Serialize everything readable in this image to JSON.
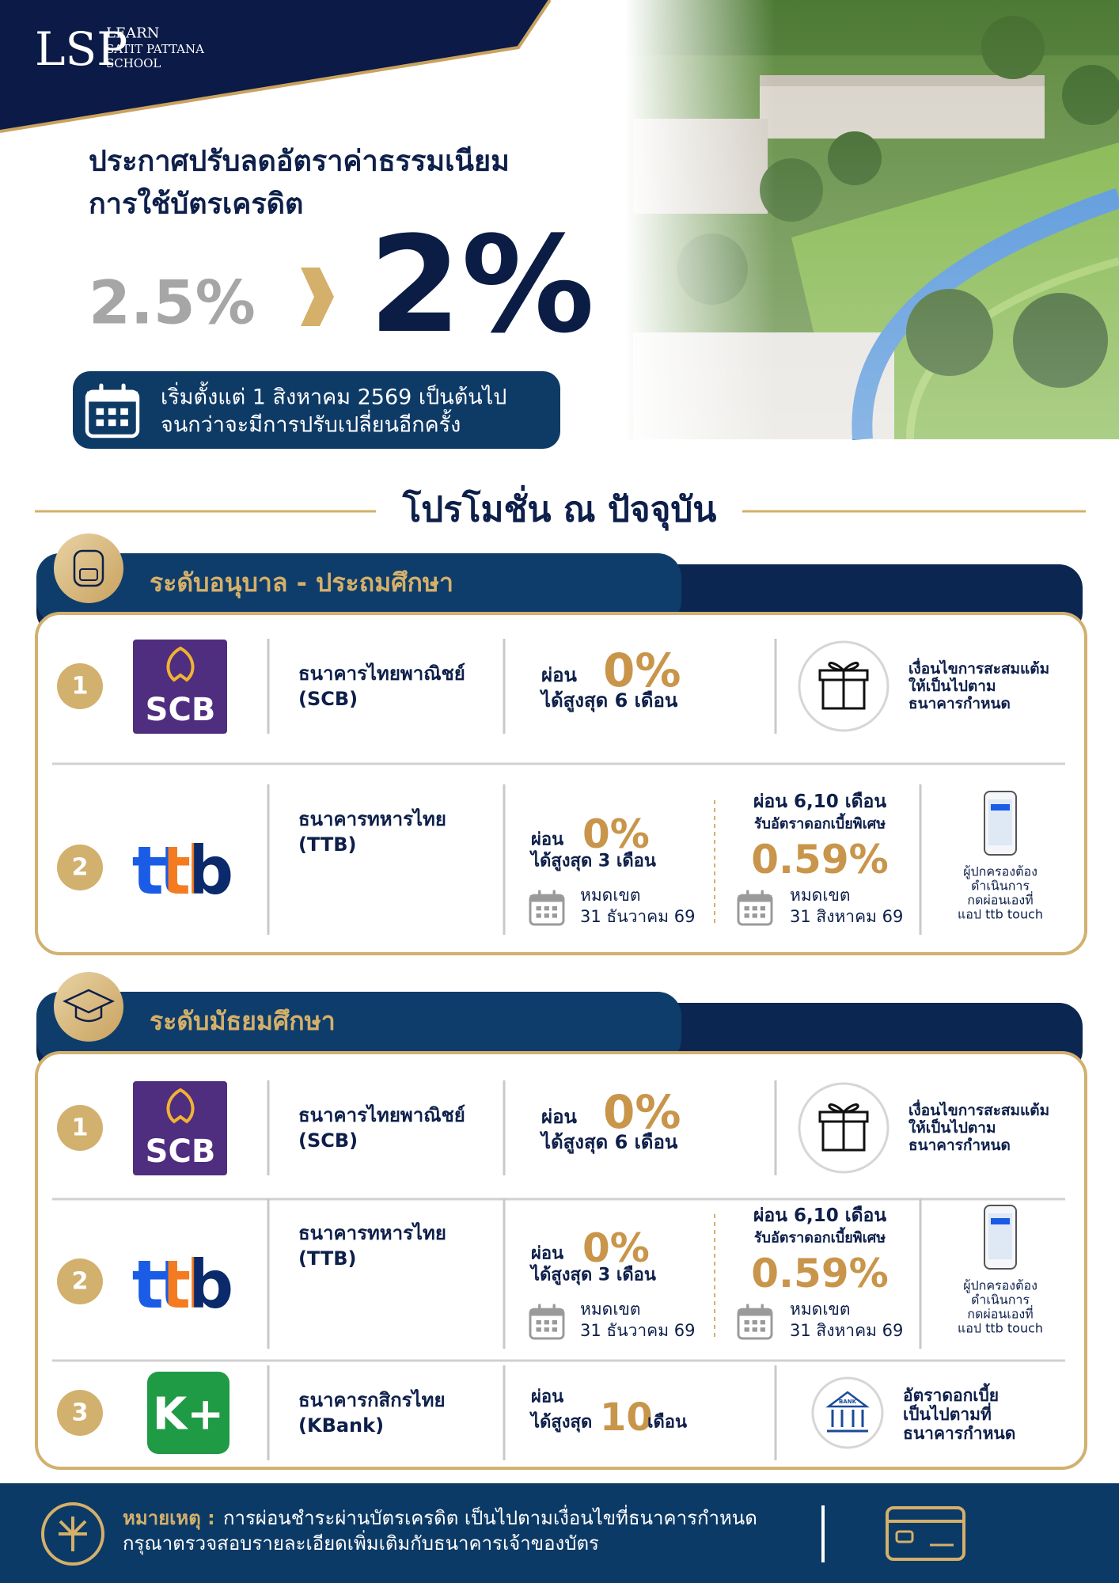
{
  "logo": {
    "mark": "LSP",
    "line1": "LEARN",
    "line2": "SATIT PATTANA",
    "line3": "SCHOOL"
  },
  "headline": {
    "line1": "ประกาศปรับลดอัตราค่าธรรมเนียม",
    "line2": "การใช้บัตรเครดิต",
    "old_rate": "2.5%",
    "new_rate": "2%"
  },
  "effective": {
    "line1": "เริ่มตั้งแต่ 1 สิงหาคม 2569 เป็นต้นไป",
    "line2": "จนกว่าจะมีการปรับเปลี่ยนอีกครั้ง"
  },
  "section_title": "โปรโมชั่น ณ ปัจจุบัน",
  "levels": [
    {
      "title": "ระดับอนุบาล - ประถมศึกษา",
      "banks": [
        {
          "number": "1",
          "logo": "SCB",
          "color": "#4f2d7f",
          "name": "ธนาคารไทยพาณิชย์",
          "code": "(SCB)",
          "installment": {
            "label": "ผ่อน",
            "rate": "0%",
            "term": "ได้สูงสุด 6 เดือน"
          },
          "condition": [
            "เงื่อนไขการสะสมแต้ม",
            "ให้เป็นไปตาม",
            "ธนาคารกำหนด"
          ]
        },
        {
          "number": "2",
          "logo": "ttb",
          "color": "#1a5ce6",
          "name": "ธนาคารทหารไทย",
          "code": "(TTB)",
          "installment": {
            "label": "ผ่อน",
            "rate": "0%",
            "term": "ได้สูงสุด 3 เดือน",
            "expiry_label": "หมดเขต",
            "expiry": "31 ธันวาคม 69"
          },
          "special": {
            "title": "ผ่อน 6,10 เดือน",
            "label": "รับอัตราดอกเบี้ยพิเศษ",
            "rate": "0.59%",
            "expiry_label": "หมดเขต",
            "expiry": "31 สิงหาคม 69"
          },
          "condition": [
            "ผู้ปกครองต้อง",
            "ดำเนินการ",
            "กดผ่อนเองที่",
            "แอป ttb touch"
          ]
        }
      ]
    },
    {
      "title": "ระดับมัธยมศึกษา",
      "banks": [
        {
          "number": "1",
          "logo": "SCB",
          "color": "#4f2d7f",
          "name": "ธนาคารไทยพาณิชย์",
          "code": "(SCB)",
          "installment": {
            "label": "ผ่อน",
            "rate": "0%",
            "term": "ได้สูงสุด 6 เดือน"
          },
          "condition": [
            "เงื่อนไขการสะสมแต้ม",
            "ให้เป็นไปตาม",
            "ธนาคารกำหนด"
          ]
        },
        {
          "number": "2",
          "logo": "ttb",
          "color": "#1a5ce6",
          "name": "ธนาคารทหารไทย",
          "code": "(TTB)",
          "installment": {
            "label": "ผ่อน",
            "rate": "0%",
            "term": "ได้สูงสุด 3 เดือน",
            "expiry_label": "หมดเขต",
            "expiry": "31 ธันวาคม 69"
          },
          "special": {
            "title": "ผ่อน 6,10 เดือน",
            "label": "รับอัตราดอกเบี้ยพิเศษ",
            "rate": "0.59%",
            "expiry_label": "หมดเขต",
            "expiry": "31 สิงหาคม 69"
          },
          "condition": [
            "ผู้ปกครองต้อง",
            "ดำเนินการ",
            "กดผ่อนเองที่",
            "แอป ttb touch"
          ]
        },
        {
          "number": "3",
          "logo": "K+",
          "color": "#1f9a45",
          "name": "ธนาคารกสิกรไทย",
          "code": "(KBank)",
          "installment": {
            "label": "ผ่อน",
            "term": "ได้สูงสุด",
            "months": "10",
            "unit": "เดือน"
          },
          "icon_text": "BANK",
          "condition": [
            "อัตราดอกเบี้ย",
            "เป็นไปตามที่",
            "ธนาคารกำหนด"
          ]
        }
      ]
    }
  ],
  "note": {
    "label": "หมายเหตุ :",
    "line1": "การผ่อนชำระผ่านบัตรเครดิต เป็นไปตามเงื่อนไขที่ธนาคารกำหนด",
    "line2": "กรุณาตรวจสอบรายละเอียดเพิ่มเติมกับธนาคารเจ้าของบัตร"
  }
}
